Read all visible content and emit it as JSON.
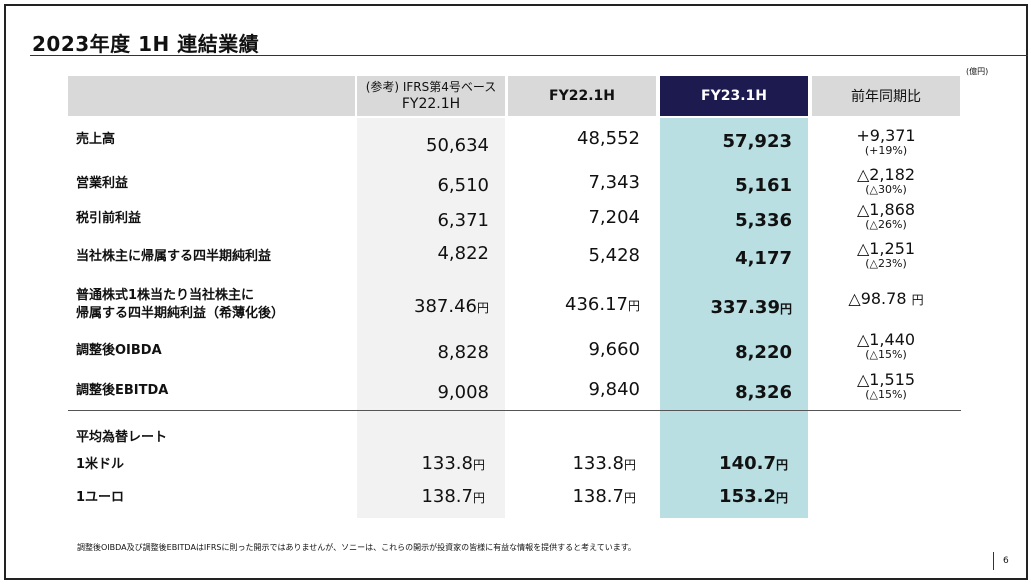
{
  "title": "2023年度 1H 連結業績",
  "unit": "(億円)",
  "headers": {
    "ref": "(参考) IFRS第4号ベース",
    "ref2": "FY22.1H",
    "fy22": "FY22.1H",
    "fy23": "FY23.1H",
    "yoy": "前年同期比"
  },
  "rows": [
    {
      "label": "売上高",
      "ref": "50,634",
      "fy22": "48,552",
      "fy23": "57,923",
      "yoy": "+9,371",
      "pct": "(+19%)"
    },
    {
      "label": "営業利益",
      "ref": "6,510",
      "fy22": "7,343",
      "fy23": "5,161",
      "yoy": "△2,182",
      "pct": "(△30%)"
    },
    {
      "label": "税引前利益",
      "ref": "6,371",
      "fy22": "7,204",
      "fy23": "5,336",
      "yoy": "△1,868",
      "pct": "(△26%)"
    },
    {
      "label": "当社株主に帰属する四半期純利益",
      "ref": "4,822",
      "fy22": "5,428",
      "fy23": "4,177",
      "yoy": "△1,251",
      "pct": "(△23%)"
    },
    {
      "label": "普通株式1株当たり当社株主に",
      "label2": "帰属する四半期純利益（希薄化後）",
      "ref": "387.46",
      "fy22": "436.17",
      "fy23": "337.39",
      "yoy": "△98.78",
      "pct": ""
    },
    {
      "label": "調整後OIBDA",
      "ref": "8,828",
      "fy22": "9,660",
      "fy23": "8,220",
      "yoy": "△1,440",
      "pct": "(△15%)"
    },
    {
      "label": "調整後EBITDA",
      "ref": "9,008",
      "fy22": "9,840",
      "fy23": "8,326",
      "yoy": "△1,515",
      "pct": "(△15%)"
    }
  ],
  "yen": "円",
  "fx": {
    "title": "平均為替レート",
    "usd": {
      "label": "1米ドル",
      "ref": "133.8",
      "fy22": "133.8",
      "fy23": "140.7"
    },
    "eur": {
      "label": "1ユーロ",
      "ref": "138.7",
      "fy22": "138.7",
      "fy23": "153.2"
    }
  },
  "footnote": "調整後OIBDA及び調整後EBITDAはIFRSに則った開示ではありませんが、ソニーは、これらの開示が投資家の皆様に有益な情報を提供すると考えています。",
  "page": "6",
  "colors": {
    "header_dark": "#1c1a4e",
    "highlight": "#b9dfe2",
    "ref_bg": "#f2f2f2"
  }
}
